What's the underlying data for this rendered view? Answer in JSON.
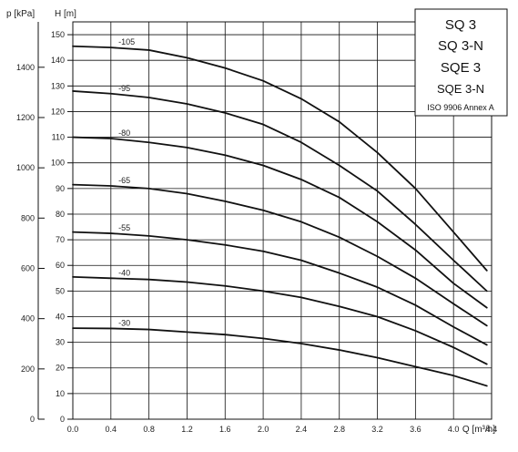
{
  "chart_data": {
    "type": "line",
    "title": "",
    "xlabel": "Q [m³/h]",
    "ylabel": "H [m]",
    "secondary_ylabel": "p [kPa]",
    "xlim": [
      0.0,
      4.4
    ],
    "ylim": [
      0,
      155
    ],
    "secondary_ylim": [
      0,
      1500
    ],
    "grid": true,
    "legend_placement": "top-right",
    "x_ticks": [
      "0.0",
      "0.4",
      "0.8",
      "1.2",
      "1.6",
      "2.0",
      "2.4",
      "2.8",
      "3.2",
      "3.6",
      "4.0",
      "4.4"
    ],
    "y_ticks": [
      "150",
      "140",
      "130",
      "120",
      "110",
      "100",
      "90",
      "80",
      "70",
      "60",
      "50",
      "40",
      "30",
      "20",
      "10",
      "0"
    ],
    "secondary_y_ticks": [
      "1400",
      "1200",
      "1000",
      "800",
      "600",
      "400",
      "200",
      "0"
    ],
    "legend_lines": [
      "SQ 3",
      "SQ 3-N",
      "SQE 3",
      "SQE 3-N",
      "ISO 9906 Annex A"
    ],
    "series": [
      {
        "name": "-105",
        "x": [
          0.0,
          0.4,
          0.8,
          1.2,
          1.6,
          2.0,
          2.4,
          2.8,
          3.2,
          3.6,
          4.0,
          4.35
        ],
        "y": [
          145.5,
          145.0,
          144.0,
          141.0,
          137.0,
          132.0,
          125.0,
          116.0,
          104.0,
          90.0,
          73.0,
          58.0
        ]
      },
      {
        "name": "-95",
        "x": [
          0.0,
          0.4,
          0.8,
          1.2,
          1.6,
          2.0,
          2.4,
          2.8,
          3.2,
          3.6,
          4.0,
          4.35
        ],
        "y": [
          128.0,
          127.0,
          125.5,
          123.0,
          119.5,
          115.0,
          108.0,
          99.0,
          89.0,
          76.0,
          62.0,
          50.0
        ]
      },
      {
        "name": "-80",
        "x": [
          0.0,
          0.4,
          0.8,
          1.2,
          1.6,
          2.0,
          2.4,
          2.8,
          3.2,
          3.6,
          4.0,
          4.35
        ],
        "y": [
          110.0,
          109.5,
          108.0,
          106.0,
          103.0,
          99.0,
          93.5,
          86.5,
          77.0,
          66.0,
          53.0,
          43.5
        ]
      },
      {
        "name": "-65",
        "x": [
          0.0,
          0.4,
          0.8,
          1.2,
          1.6,
          2.0,
          2.4,
          2.8,
          3.2,
          3.6,
          4.0,
          4.35
        ],
        "y": [
          91.5,
          91.0,
          90.0,
          88.0,
          85.0,
          81.5,
          77.0,
          71.0,
          63.5,
          55.0,
          45.0,
          36.5
        ]
      },
      {
        "name": "-55",
        "x": [
          0.0,
          0.4,
          0.8,
          1.2,
          1.6,
          2.0,
          2.4,
          2.8,
          3.2,
          3.6,
          4.0,
          4.35
        ],
        "y": [
          73.0,
          72.5,
          71.5,
          70.0,
          68.0,
          65.5,
          62.0,
          57.0,
          51.5,
          44.5,
          36.0,
          29.0
        ]
      },
      {
        "name": "-40",
        "x": [
          0.0,
          0.4,
          0.8,
          1.2,
          1.6,
          2.0,
          2.4,
          2.8,
          3.2,
          3.6,
          4.0,
          4.35
        ],
        "y": [
          55.5,
          55.0,
          54.5,
          53.5,
          52.0,
          50.0,
          47.5,
          44.0,
          40.0,
          34.5,
          28.0,
          21.5
        ]
      },
      {
        "name": "-30",
        "x": [
          0.0,
          0.4,
          0.8,
          1.2,
          1.6,
          2.0,
          2.4,
          2.8,
          3.2,
          3.6,
          4.0,
          4.35
        ],
        "y": [
          35.5,
          35.4,
          35.0,
          34.0,
          33.0,
          31.5,
          29.5,
          27.0,
          24.0,
          20.5,
          17.0,
          13.0
        ]
      }
    ]
  }
}
